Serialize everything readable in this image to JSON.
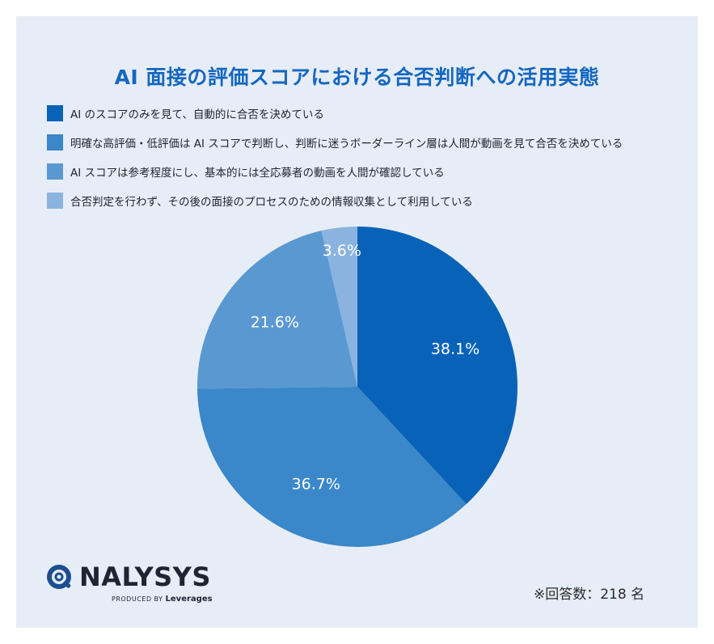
{
  "chart_data": {
    "type": "pie",
    "title": "AI 面接の評価スコアにおける合否判断への活用実態",
    "categories": [
      "AI のスコアのみを見て、自動的に合否を決めている",
      "明確な高評価・低評価は AI スコアで判断し、判断に迷うボーダーライン層は人間が動画を見て合否を決めている",
      "AI スコアは参考程度にし、基本的には全応募者の動画を人間が確認している",
      "合否判定を行わず、その後の面接のプロセスのための情報収集として利用している"
    ],
    "values": [
      38.1,
      36.7,
      21.6,
      3.6
    ],
    "value_labels": [
      "38.1%",
      "36.7%",
      "21.6%",
      "3.6%"
    ],
    "colors": [
      "#0863b8",
      "#3a87c9",
      "#5a98d1",
      "#8ab3e0"
    ],
    "legend_position": "top-left",
    "start": "12 o'clock, clockwise"
  },
  "footnote": "※回答数：218 名",
  "brand": {
    "name": "NALYSYS",
    "produced_by": "PRODUCED BY",
    "company": "Leverages"
  }
}
